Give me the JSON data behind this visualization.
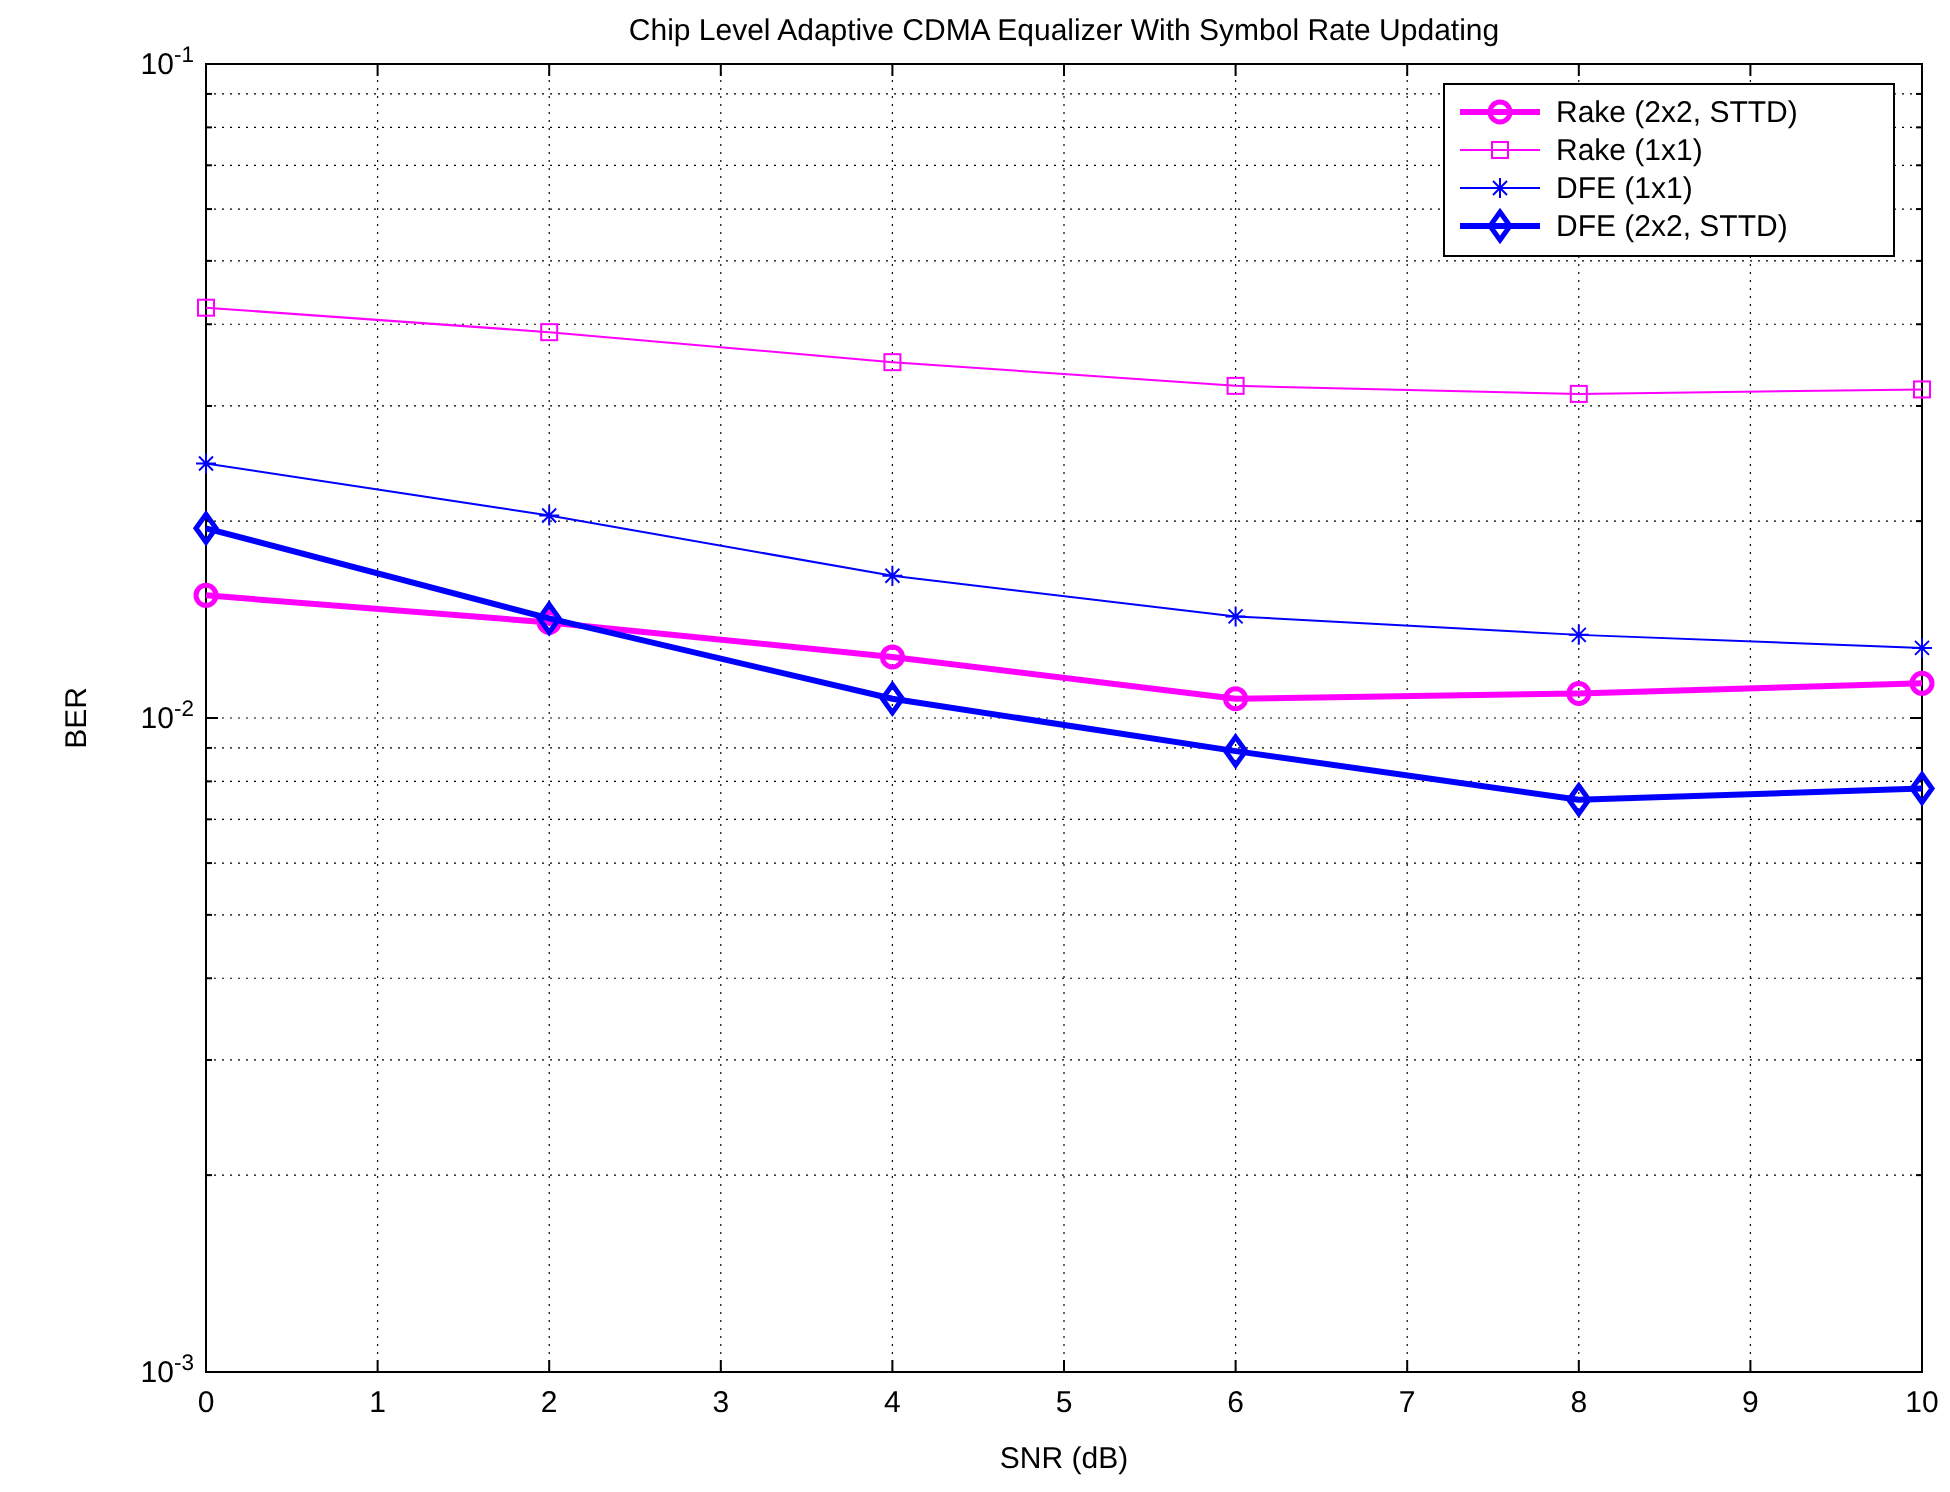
{
  "chart_data": {
    "type": "line",
    "title": "Chip Level Adaptive CDMA Equalizer With Symbol Rate Updating",
    "xlabel": "SNR (dB)",
    "ylabel": "BER",
    "x": [
      0,
      2,
      4,
      6,
      8,
      10
    ],
    "series": [
      {
        "name": "Rake (2x2, STTD)",
        "color": "#ff00ff",
        "marker": "circle",
        "values": [
          0.0154,
          0.014,
          0.0124,
          0.0107,
          0.0109,
          0.0113
        ]
      },
      {
        "name": "Rake (1x1)",
        "color": "#ff00ff",
        "marker": "square",
        "values": [
          0.0424,
          0.0389,
          0.035,
          0.0322,
          0.0313,
          0.0318
        ]
      },
      {
        "name": "DFE (1x1)",
        "color": "#0000ff",
        "marker": "cross",
        "values": [
          0.0245,
          0.0204,
          0.0165,
          0.0143,
          0.0134,
          0.0128
        ]
      },
      {
        "name": "DFE (2x2, STTD)",
        "color": "#0000ff",
        "marker": "diamond",
        "values": [
          0.0195,
          0.0142,
          0.0107,
          0.0089,
          0.0075,
          0.0078
        ]
      }
    ],
    "log": "y",
    "xlim": [
      0,
      10
    ],
    "xticks": [
      0,
      1,
      2,
      3,
      4,
      5,
      6,
      7,
      8,
      9,
      10
    ],
    "ylim": [
      0.001,
      0.1
    ],
    "yticks": [
      {
        "value": 0.001,
        "label": "10$^{-3}$"
      },
      {
        "value": 0.01,
        "label": "10$^{-2}$"
      },
      {
        "value": 0.1,
        "label": "10$^{-1}$"
      }
    ],
    "grid": true,
    "legend": "top right",
    "line_style": "solid"
  }
}
